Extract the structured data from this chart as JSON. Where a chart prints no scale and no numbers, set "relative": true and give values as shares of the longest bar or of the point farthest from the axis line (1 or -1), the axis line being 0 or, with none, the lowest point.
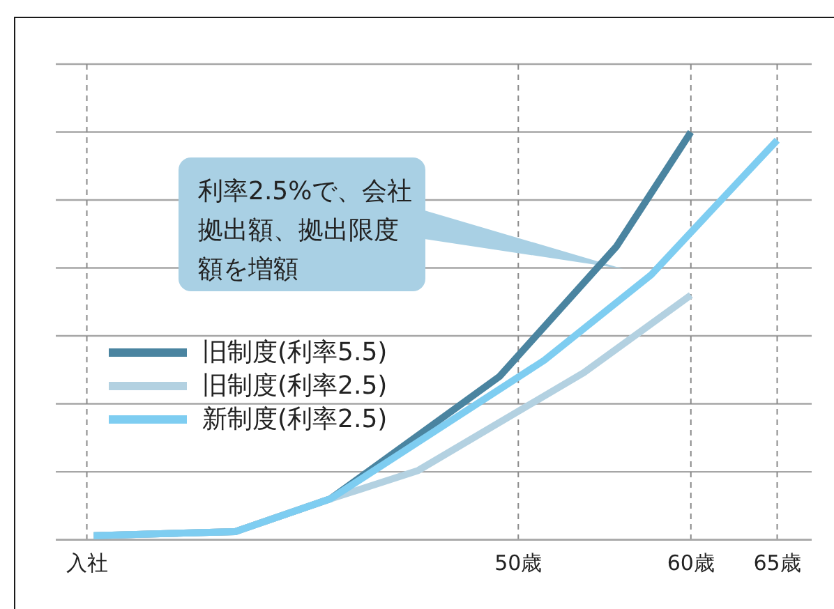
{
  "chart_data": {
    "type": "line",
    "relative": true,
    "xlim": [
      23.2,
      67
    ],
    "xticks": [
      {
        "value": 25,
        "label": "入社"
      },
      {
        "value": 50,
        "label": "50歳"
      },
      {
        "value": 60,
        "label": "60歳"
      },
      {
        "value": 65,
        "label": "65歳"
      }
    ],
    "tick_labels": "x",
    "grid": true,
    "legend": "left",
    "line_style": "solid",
    "series": [
      {
        "name": "旧制度(利率5.5)",
        "color": "#4a84a0",
        "x": [
          25.4,
          33.6,
          39.1,
          48.9,
          55.7,
          60
        ],
        "values": [
          0.01,
          0.02,
          0.1,
          0.4,
          0.72,
          1
        ]
      },
      {
        "name": "旧制度(利率2.5)",
        "color": "#b3d1e1",
        "x": [
          25.4,
          33.6,
          39.1,
          44.2,
          53.8,
          60
        ],
        "values": [
          0.01,
          0.02,
          0.1,
          0.17,
          0.41,
          0.6
        ]
      },
      {
        "name": "新制度(利率2.5)",
        "color": "#7ecdf1",
        "x": [
          25.4,
          33.6,
          39.1,
          51.5,
          57.7,
          65
        ],
        "values": [
          0.01,
          0.02,
          0.1,
          0.44,
          0.65,
          0.98
        ]
      }
    ],
    "annotations": [
      "利率2.5%で、会社拠出額、拠出限度額を増額"
    ]
  }
}
